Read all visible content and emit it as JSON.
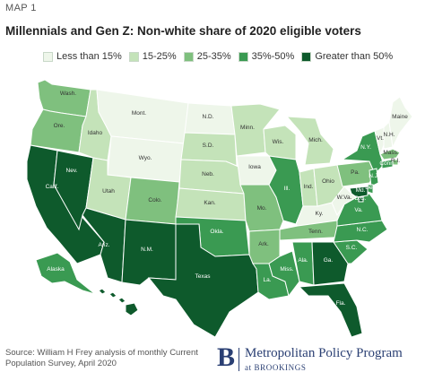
{
  "header": {
    "map_label": "MAP 1",
    "title": "Millennials and Gen Z: Non-white share of 2020 eligible voters"
  },
  "legend": {
    "items": [
      {
        "label": "Less than 15%",
        "color": "#eef6ea"
      },
      {
        "label": "15-25%",
        "color": "#c4e3b9"
      },
      {
        "label": "25-35%",
        "color": "#7fc07e"
      },
      {
        "label": "35%-50%",
        "color": "#3a9a52"
      },
      {
        "label": "Greater than 50%",
        "color": "#0e5a2c"
      }
    ]
  },
  "states": [
    {
      "id": "wa",
      "label": "Wash.",
      "bin": 2
    },
    {
      "id": "or",
      "label": "Ore.",
      "bin": 2
    },
    {
      "id": "ca",
      "label": "Calif.",
      "bin": 4
    },
    {
      "id": "nv",
      "label": "Nev.",
      "bin": 4
    },
    {
      "id": "id",
      "label": "Idaho",
      "bin": 1
    },
    {
      "id": "mt",
      "label": "Mont.",
      "bin": 0
    },
    {
      "id": "wy",
      "label": "Wyo.",
      "bin": 0
    },
    {
      "id": "ut",
      "label": "Utah",
      "bin": 1
    },
    {
      "id": "az",
      "label": "Ariz.",
      "bin": 4
    },
    {
      "id": "co",
      "label": "Colo.",
      "bin": 2
    },
    {
      "id": "nm",
      "label": "N.M.",
      "bin": 4
    },
    {
      "id": "nd",
      "label": "N.D.",
      "bin": 0
    },
    {
      "id": "sd",
      "label": "S.D.",
      "bin": 1
    },
    {
      "id": "ne",
      "label": "Neb.",
      "bin": 1
    },
    {
      "id": "ks",
      "label": "Kan.",
      "bin": 1
    },
    {
      "id": "ok",
      "label": "Okla.",
      "bin": 3
    },
    {
      "id": "tx",
      "label": "Texas",
      "bin": 4
    },
    {
      "id": "mn",
      "label": "Minn.",
      "bin": 1
    },
    {
      "id": "ia",
      "label": "Iowa",
      "bin": 0
    },
    {
      "id": "mo",
      "label": "Mo.",
      "bin": 2
    },
    {
      "id": "ar",
      "label": "Ark.",
      "bin": 2
    },
    {
      "id": "la",
      "label": "La.",
      "bin": 3
    },
    {
      "id": "wi",
      "label": "Wis.",
      "bin": 1
    },
    {
      "id": "il",
      "label": "Ill.",
      "bin": 3
    },
    {
      "id": "ms",
      "label": "Miss.",
      "bin": 3
    },
    {
      "id": "mi",
      "label": "Mich.",
      "bin": 1
    },
    {
      "id": "in",
      "label": "Ind.",
      "bin": 1
    },
    {
      "id": "ky",
      "label": "Ky.",
      "bin": 0
    },
    {
      "id": "tn",
      "label": "Tenn.",
      "bin": 2
    },
    {
      "id": "al",
      "label": "Ala.",
      "bin": 3
    },
    {
      "id": "oh",
      "label": "Ohio",
      "bin": 1
    },
    {
      "id": "wv",
      "label": "W.Va.",
      "bin": 0
    },
    {
      "id": "ga",
      "label": "Ga.",
      "bin": 4
    },
    {
      "id": "fl",
      "label": "Fla.",
      "bin": 4
    },
    {
      "id": "sc",
      "label": "S.C.",
      "bin": 3
    },
    {
      "id": "nc",
      "label": "N.C.",
      "bin": 3
    },
    {
      "id": "va",
      "label": "Va.",
      "bin": 3
    },
    {
      "id": "pa",
      "label": "Pa.",
      "bin": 2
    },
    {
      "id": "ny",
      "label": "N.Y.",
      "bin": 3
    },
    {
      "id": "vt",
      "label": "Vt.",
      "bin": 0
    },
    {
      "id": "nh",
      "label": "N.H.",
      "bin": 0
    },
    {
      "id": "me",
      "label": "Maine",
      "bin": 0
    },
    {
      "id": "ma",
      "label": "Mass.",
      "bin": 2
    },
    {
      "id": "ri",
      "label": "R.I.",
      "bin": 2
    },
    {
      "id": "ct",
      "label": "Conn.",
      "bin": 3
    },
    {
      "id": "nj",
      "label": "N.J.",
      "bin": 3
    },
    {
      "id": "de",
      "label": "Del.",
      "bin": 3
    },
    {
      "id": "md",
      "label": "Md.",
      "bin": 4
    },
    {
      "id": "dc",
      "label": "D.C.",
      "bin": 4
    },
    {
      "id": "ak",
      "label": "Alaska",
      "bin": 3
    },
    {
      "id": "hi",
      "label": "Hawaii",
      "bin": 4
    }
  ],
  "footer": {
    "source": "Source: William H Frey analysis of monthly Current Population Survey, April 2020",
    "logo_letter": "B",
    "program_name": "Metropolitan Policy Program",
    "program_sub": "at BROOKINGS"
  }
}
